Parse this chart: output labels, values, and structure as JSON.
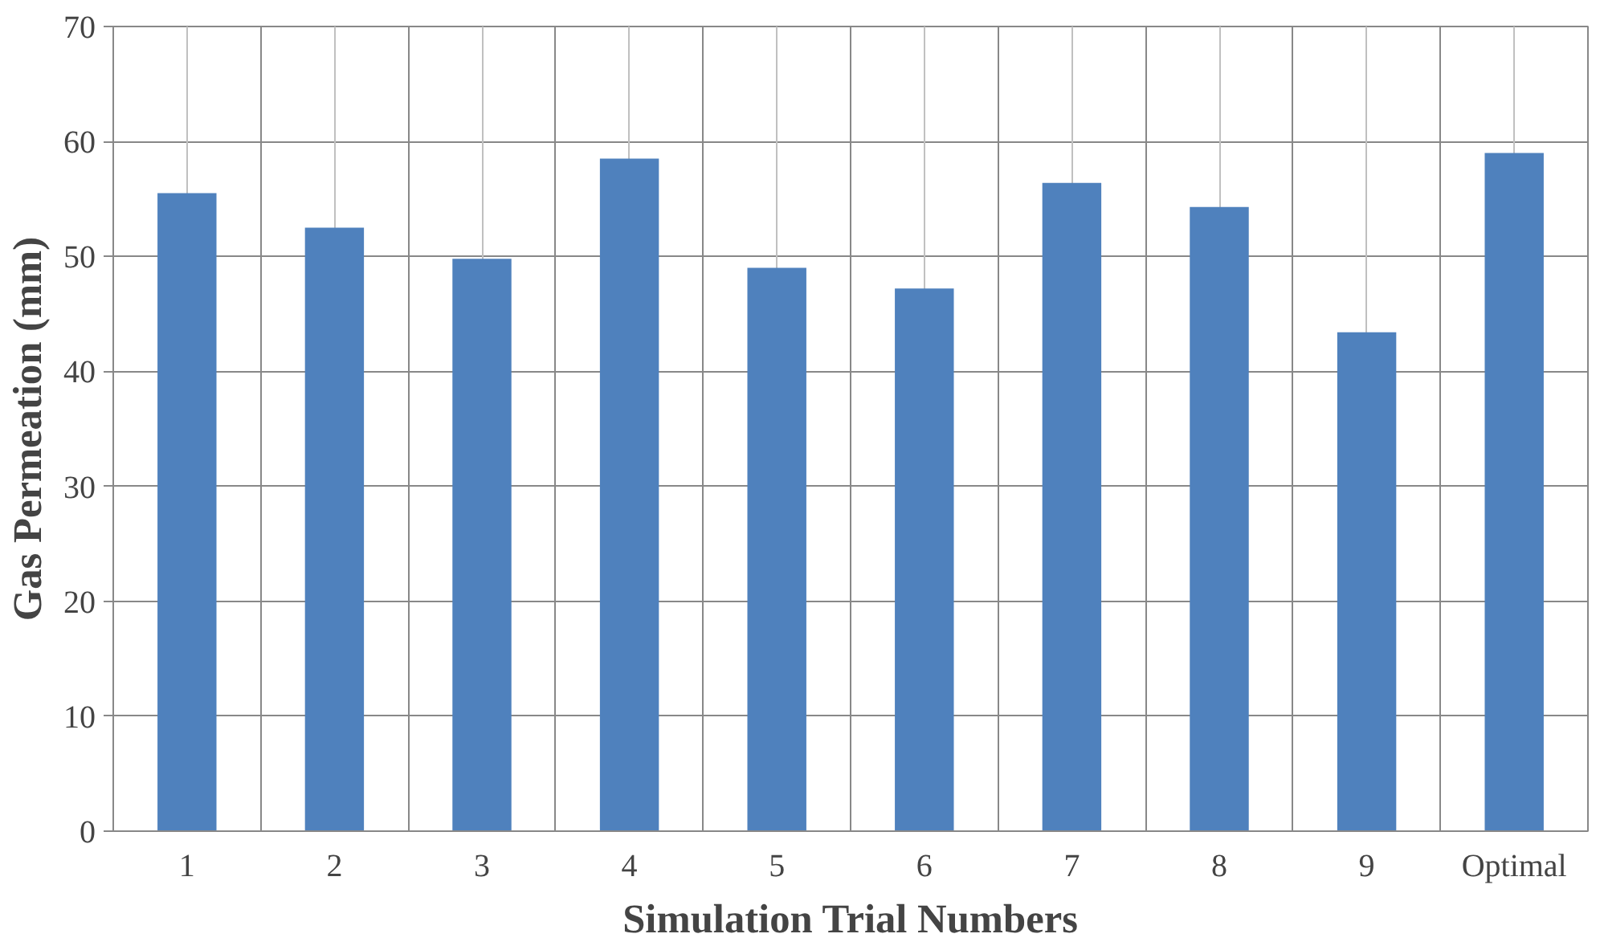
{
  "chart_data": {
    "type": "bar",
    "xlabel": "Simulation Trial Numbers",
    "ylabel": "Gas Permeation (mm)",
    "categories": [
      "1",
      "2",
      "3",
      "4",
      "5",
      "6",
      "7",
      "8",
      "9",
      "Optimal"
    ],
    "values": [
      55.5,
      52.5,
      49.8,
      58.5,
      49.0,
      47.2,
      56.4,
      54.3,
      43.4,
      59.0
    ],
    "color": "#4f81bd",
    "ylim": [
      0,
      70
    ],
    "yticks": [
      0,
      10,
      20,
      30,
      40,
      50,
      60,
      70
    ],
    "grid": true
  }
}
